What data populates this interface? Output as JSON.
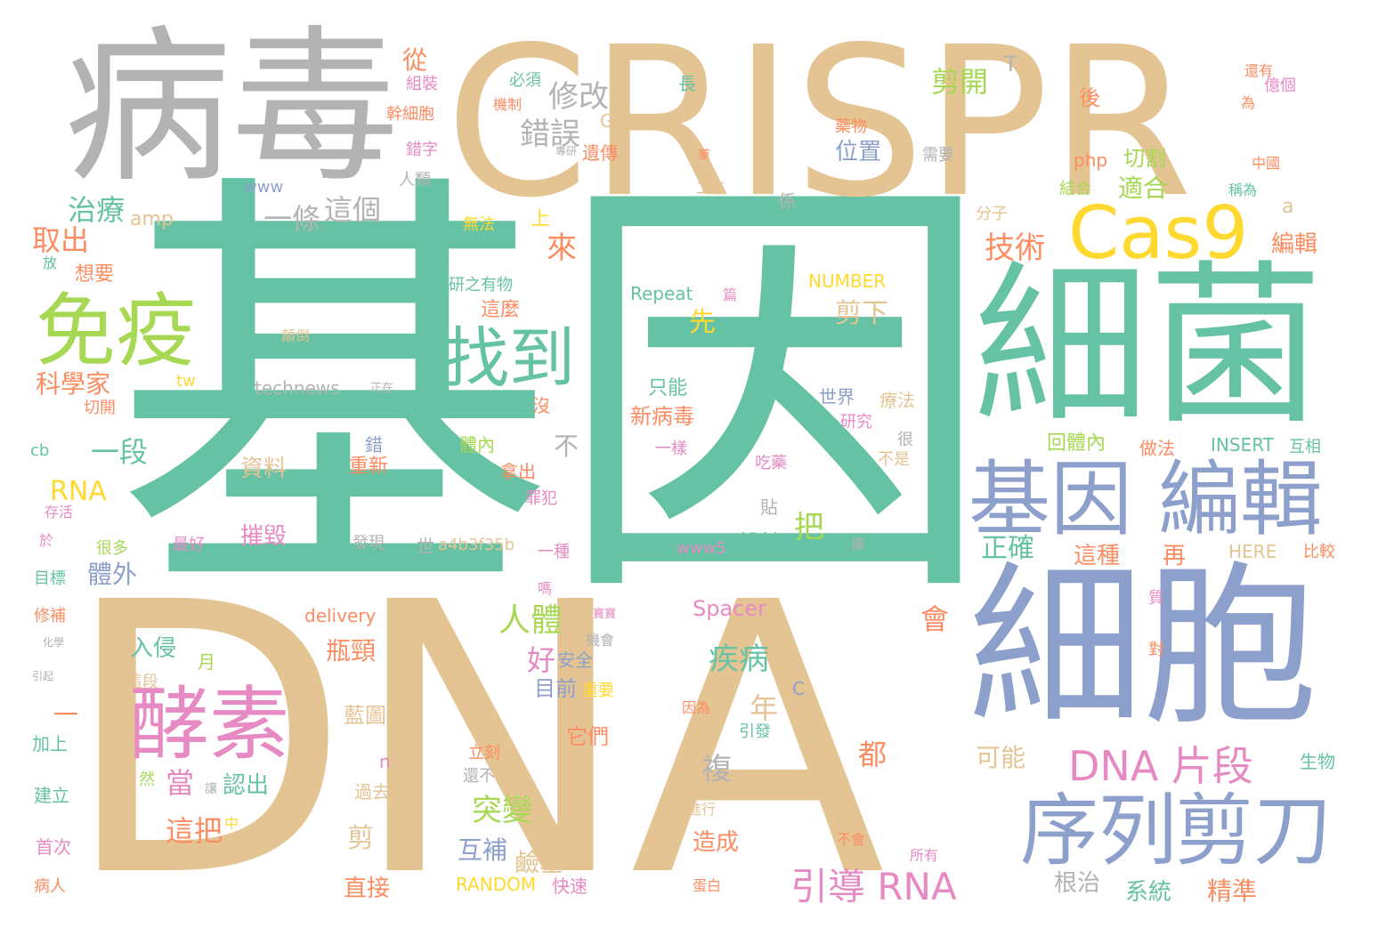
{
  "palette": {
    "green": "#66c2a5",
    "tan": "#e5c494",
    "grey": "#b3b3b3",
    "blue": "#8da0cb",
    "pink": "#e78ac3",
    "lime": "#a6d854",
    "yellow": "#ffd92f",
    "orange": "#fc8d62"
  },
  "words": [
    {
      "text": "基因",
      "color": "green"
    },
    {
      "text": "DNA",
      "color": "tan"
    },
    {
      "text": "CRISPR",
      "color": "tan"
    },
    {
      "text": "病毒",
      "color": "grey"
    },
    {
      "text": "細菌",
      "color": "green"
    },
    {
      "text": "細胞",
      "color": "blue"
    },
    {
      "text": "基因 編輯",
      "color": "blue"
    },
    {
      "text": "序列",
      "color": "blue"
    },
    {
      "text": "剪刀",
      "color": "blue"
    },
    {
      "text": "Cas9",
      "color": "yellow"
    },
    {
      "text": "免疫",
      "color": "lime"
    },
    {
      "text": "酵素",
      "color": "pink"
    },
    {
      "text": "找到",
      "color": "green"
    },
    {
      "text": "DNA 片段",
      "color": "pink"
    },
    {
      "text": "引導 RNA",
      "color": "pink"
    },
    {
      "text": "修改",
      "color": "grey"
    },
    {
      "text": "錯誤",
      "color": "grey"
    },
    {
      "text": "技術",
      "color": "orange"
    },
    {
      "text": "剪開",
      "color": "lime"
    },
    {
      "text": "一條",
      "color": "grey"
    },
    {
      "text": "這個",
      "color": "grey"
    },
    {
      "text": "治療",
      "color": "green"
    },
    {
      "text": "取出",
      "color": "orange"
    },
    {
      "text": "一段",
      "color": "green"
    },
    {
      "text": "RNA",
      "color": "yellow"
    },
    {
      "text": "科學家",
      "color": "orange"
    },
    {
      "text": "來",
      "color": "orange"
    },
    {
      "text": "剪下",
      "color": "tan"
    },
    {
      "text": "人體",
      "color": "lime"
    },
    {
      "text": "疾病",
      "color": "green"
    },
    {
      "text": "突變",
      "color": "lime"
    },
    {
      "text": "這把",
      "color": "orange"
    },
    {
      "text": "互補",
      "color": "blue"
    },
    {
      "text": "當",
      "color": "pink"
    },
    {
      "text": "好",
      "color": "pink"
    },
    {
      "text": "會",
      "color": "orange"
    },
    {
      "text": "瓶頸",
      "color": "orange"
    },
    {
      "text": "年",
      "color": "tan"
    },
    {
      "text": "把",
      "color": "lime"
    },
    {
      "text": "位置",
      "color": "blue"
    },
    {
      "text": "適合",
      "color": "lime"
    },
    {
      "text": "切割",
      "color": "lime"
    },
    {
      "text": "php",
      "color": "orange"
    },
    {
      "text": "編輯",
      "color": "orange"
    },
    {
      "text": "這麼",
      "color": "orange"
    },
    {
      "text": "先",
      "color": "yellow"
    },
    {
      "text": "只能",
      "color": "green"
    },
    {
      "text": "新病毒",
      "color": "orange"
    },
    {
      "text": "正確",
      "color": "green"
    },
    {
      "text": "這種",
      "color": "orange"
    },
    {
      "text": "再",
      "color": "orange"
    },
    {
      "text": "體外",
      "color": "blue"
    },
    {
      "text": "摧毀",
      "color": "pink"
    },
    {
      "text": "資料",
      "color": "tan"
    },
    {
      "text": "重新",
      "color": "orange"
    },
    {
      "text": "設計",
      "color": "green"
    },
    {
      "text": "可能",
      "color": "tan"
    },
    {
      "text": "根治",
      "color": "grey"
    },
    {
      "text": "系統",
      "color": "green"
    },
    {
      "text": "精準",
      "color": "orange"
    },
    {
      "text": "直接",
      "color": "orange"
    },
    {
      "text": "鹼基",
      "color": "tan"
    },
    {
      "text": "剪",
      "color": "tan"
    },
    {
      "text": "都",
      "color": "orange"
    },
    {
      "text": "造成",
      "color": "orange"
    },
    {
      "text": "複",
      "color": "grey"
    },
    {
      "text": "認出",
      "color": "green"
    },
    {
      "text": "入侵",
      "color": "green"
    },
    {
      "text": "目前",
      "color": "blue"
    },
    {
      "text": "安全",
      "color": "blue"
    },
    {
      "text": "它們",
      "color": "orange"
    },
    {
      "text": "藍圖",
      "color": "tan"
    },
    {
      "text": "Spacer",
      "color": "pink"
    },
    {
      "text": "delivery",
      "color": "orange"
    },
    {
      "text": "RANDOM",
      "color": "yellow"
    },
    {
      "text": "快速",
      "color": "pink"
    },
    {
      "text": "technews",
      "color": "grey"
    },
    {
      "text": "amp",
      "color": "tan"
    },
    {
      "text": "www",
      "color": "blue"
    },
    {
      "text": "Repeat",
      "color": "green"
    },
    {
      "text": "NUMBER",
      "color": "yellow"
    },
    {
      "text": "INSERT",
      "color": "green"
    },
    {
      "text": "HERE",
      "color": "tan"
    },
    {
      "text": "a4b3f35b",
      "color": "tan"
    },
    {
      "text": "www5",
      "color": "pink"
    },
    {
      "text": "cb",
      "color": "green"
    },
    {
      "text": "tw",
      "color": "yellow"
    },
    {
      "text": "世界",
      "color": "blue"
    },
    {
      "text": "研究",
      "color": "pink"
    },
    {
      "text": "療法",
      "color": "tan"
    },
    {
      "text": "很",
      "color": "grey"
    },
    {
      "text": "不是",
      "color": "tan"
    },
    {
      "text": "回體內",
      "color": "lime"
    },
    {
      "text": "做法",
      "color": "orange"
    },
    {
      "text": "互相",
      "color": "green"
    },
    {
      "text": "比較",
      "color": "orange"
    },
    {
      "text": "結合",
      "color": "lime"
    },
    {
      "text": "稱為",
      "color": "green"
    },
    {
      "text": "中國",
      "color": "orange"
    },
    {
      "text": "還有",
      "color": "orange"
    },
    {
      "text": "億個",
      "color": "pink"
    },
    {
      "text": "為",
      "color": "orange"
    },
    {
      "text": "後",
      "color": "orange"
    },
    {
      "text": "分子",
      "color": "tan"
    },
    {
      "text": "a",
      "color": "tan"
    },
    {
      "text": "T",
      "color": "grey"
    },
    {
      "text": "G",
      "color": "tan"
    },
    {
      "text": "C",
      "color": "blue"
    },
    {
      "text": "n",
      "color": "pink"
    },
    {
      "text": "從",
      "color": "orange"
    },
    {
      "text": "組裝",
      "color": "pink"
    },
    {
      "text": "幹細胞",
      "color": "orange"
    },
    {
      "text": "錯字",
      "color": "pink"
    },
    {
      "text": "人類",
      "color": "grey"
    },
    {
      "text": "遺傳",
      "color": "orange"
    },
    {
      "text": "必須",
      "color": "green"
    },
    {
      "text": "機制",
      "color": "orange"
    },
    {
      "text": "專研",
      "color": "grey"
    },
    {
      "text": "長",
      "color": "green"
    },
    {
      "text": "藥物",
      "color": "orange"
    },
    {
      "text": "需要",
      "color": "grey"
    },
    {
      "text": "工廠",
      "color": "tan"
    },
    {
      "text": "係",
      "color": "grey"
    },
    {
      "text": "無法",
      "color": "yellow"
    },
    {
      "text": "上",
      "color": "yellow"
    },
    {
      "text": "想要",
      "color": "orange"
    },
    {
      "text": "放",
      "color": "green"
    },
    {
      "text": "事件",
      "color": "green"
    },
    {
      "text": "研之有物",
      "color": "green"
    },
    {
      "text": "顛倒",
      "color": "tan"
    },
    {
      "text": "正在",
      "color": "grey"
    },
    {
      "text": "切開",
      "color": "orange"
    },
    {
      "text": "沒",
      "color": "orange"
    },
    {
      "text": "不",
      "color": "grey"
    },
    {
      "text": "體內",
      "color": "lime"
    },
    {
      "text": "拿出",
      "color": "orange"
    },
    {
      "text": "罪犯",
      "color": "pink"
    },
    {
      "text": "一種",
      "color": "pink"
    },
    {
      "text": "發現",
      "color": "grey"
    },
    {
      "text": "世",
      "color": "grey"
    },
    {
      "text": "最好",
      "color": "pink"
    },
    {
      "text": "很多",
      "color": "lime"
    },
    {
      "text": "存活",
      "color": "pink"
    },
    {
      "text": "於",
      "color": "pink"
    },
    {
      "text": "目標",
      "color": "green"
    },
    {
      "text": "修補",
      "color": "orange"
    },
    {
      "text": "化學",
      "color": "grey"
    },
    {
      "text": "引起",
      "color": "grey"
    },
    {
      "text": "加上",
      "color": "green"
    },
    {
      "text": "建立",
      "color": "green"
    },
    {
      "text": "首次",
      "color": "pink"
    },
    {
      "text": "病人",
      "color": "orange"
    },
    {
      "text": "一",
      "color": "orange"
    },
    {
      "text": "這段",
      "color": "tan"
    },
    {
      "text": "月",
      "color": "lime"
    },
    {
      "text": "然",
      "color": "lime"
    },
    {
      "text": "讓",
      "color": "grey"
    },
    {
      "text": "中",
      "color": "yellow"
    },
    {
      "text": "過去",
      "color": "tan"
    },
    {
      "text": "立刻",
      "color": "orange"
    },
    {
      "text": "還不",
      "color": "grey"
    },
    {
      "text": "嗎",
      "color": "pink"
    },
    {
      "text": "重要",
      "color": "yellow"
    },
    {
      "text": "機會",
      "color": "grey"
    },
    {
      "text": "寶寶",
      "color": "pink"
    },
    {
      "text": "因為",
      "color": "orange"
    },
    {
      "text": "引發",
      "color": "green"
    },
    {
      "text": "進行",
      "color": "tan"
    },
    {
      "text": "不會",
      "color": "orange"
    },
    {
      "text": "所有",
      "color": "pink"
    },
    {
      "text": "蛋白",
      "color": "orange"
    },
    {
      "text": "生物",
      "color": "green"
    },
    {
      "text": "對",
      "color": "orange"
    },
    {
      "text": "質",
      "color": "pink"
    },
    {
      "text": "貼",
      "color": "grey"
    },
    {
      "text": "庫",
      "color": "grey"
    },
    {
      "text": "吃藥",
      "color": "pink"
    },
    {
      "text": "一樣",
      "color": "pink"
    },
    {
      "text": "錯",
      "color": "blue"
    },
    {
      "text": "篇",
      "color": "pink"
    },
    {
      "text": "華",
      "color": "orange"
    }
  ]
}
